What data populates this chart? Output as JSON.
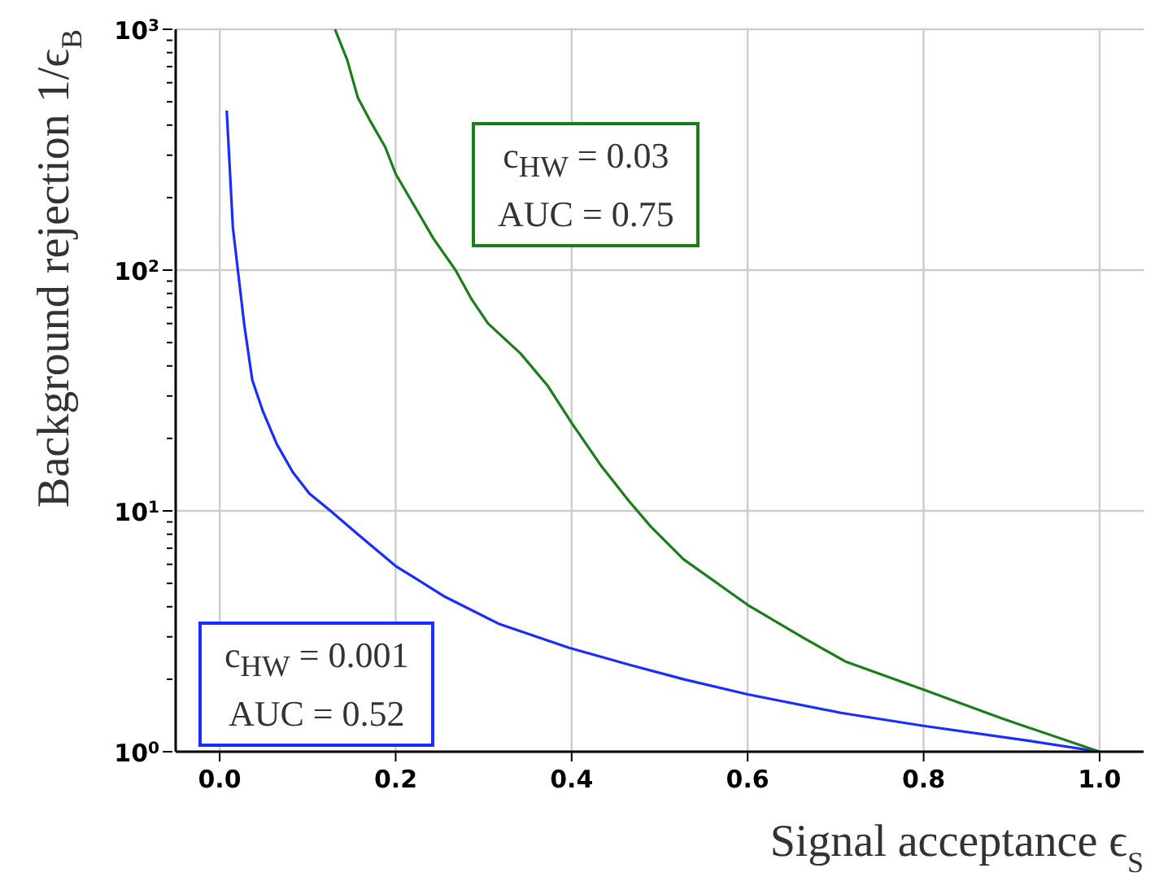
{
  "chart_data": {
    "type": "line",
    "xlabel": "Signal acceptance ϵ$_{S}$",
    "ylabel": "Background rejection 1/ϵ$_{B}$",
    "series": [
      {
        "color": "#1a2cff",
        "x": [
          0.008,
          0.015,
          0.028,
          0.037,
          0.049,
          0.065,
          0.083,
          0.102,
          0.126,
          0.157,
          0.2,
          0.256,
          0.317,
          0.397,
          0.465,
          0.527,
          0.6,
          0.706,
          0.8,
          0.92,
          1.0
        ],
        "values": [
          460,
          150,
          59,
          35,
          26,
          18.9,
          14.5,
          11.8,
          10,
          8.0,
          5.9,
          4.4,
          3.4,
          2.7,
          2.3,
          2.0,
          1.73,
          1.45,
          1.28,
          1.11,
          1.0
        ]
      },
      {
        "color": "#1a7f1a",
        "x": [
          0.131,
          0.145,
          0.157,
          0.17,
          0.188,
          0.2,
          0.225,
          0.243,
          0.268,
          0.286,
          0.305,
          0.342,
          0.373,
          0.4,
          0.434,
          0.465,
          0.49,
          0.527,
          0.6,
          0.662,
          0.712,
          0.8,
          0.89,
          1.0
        ],
        "values": [
          1000,
          745,
          520,
          423,
          325,
          251,
          175,
          135,
          100,
          76,
          60,
          45,
          33,
          23.2,
          15.3,
          11,
          8.6,
          6.3,
          4.07,
          2.99,
          2.36,
          1.81,
          1.37,
          1.0
        ]
      }
    ],
    "annotations": [
      "c$_{HW}$ = 0.001\nAUC = 0.52",
      "c$_{HW}$ = 0.03\nAUC = 0.75"
    ],
    "xlim": [
      -0.05,
      1.05
    ],
    "xticks": [
      {
        "value": 0,
        "label": "0.0"
      },
      0.2,
      0.4,
      0.6,
      0.8,
      {
        "value": 1,
        "label": "1.0"
      }
    ],
    "ylim": [
      1,
      1000
    ],
    "log": "y",
    "yticks": [
      {
        "value": 1,
        "label": "10$^{0}$"
      },
      {
        "value": 2,
        "label": null
      },
      {
        "value": 3,
        "label": null
      },
      {
        "value": 4,
        "label": null
      },
      {
        "value": 5,
        "label": null
      },
      {
        "value": 6,
        "label": null
      },
      {
        "value": 7,
        "label": null
      },
      {
        "value": 8,
        "label": null
      },
      {
        "value": 9,
        "label": null
      },
      {
        "value": 10,
        "label": "10$^{1}$"
      },
      {
        "value": 20,
        "label": null
      },
      {
        "value": 30,
        "label": null
      },
      {
        "value": 40,
        "label": null
      },
      {
        "value": 50,
        "label": null
      },
      {
        "value": 60,
        "label": null
      },
      {
        "value": 70,
        "label": null
      },
      {
        "value": 80,
        "label": null
      },
      {
        "value": 90,
        "label": null
      },
      {
        "value": 100,
        "label": "10$^{2}$"
      },
      {
        "value": 200,
        "label": null
      },
      {
        "value": 300,
        "label": null
      },
      {
        "value": 400,
        "label": null
      },
      {
        "value": 500,
        "label": null
      },
      {
        "value": 600,
        "label": null
      },
      {
        "value": 700,
        "label": null
      },
      {
        "value": 800,
        "label": null
      },
      {
        "value": 900,
        "label": null
      },
      {
        "value": 1000,
        "label": "10$^{3}$"
      }
    ],
    "grid": true,
    "marker": "none",
    "line_style": "solid"
  }
}
